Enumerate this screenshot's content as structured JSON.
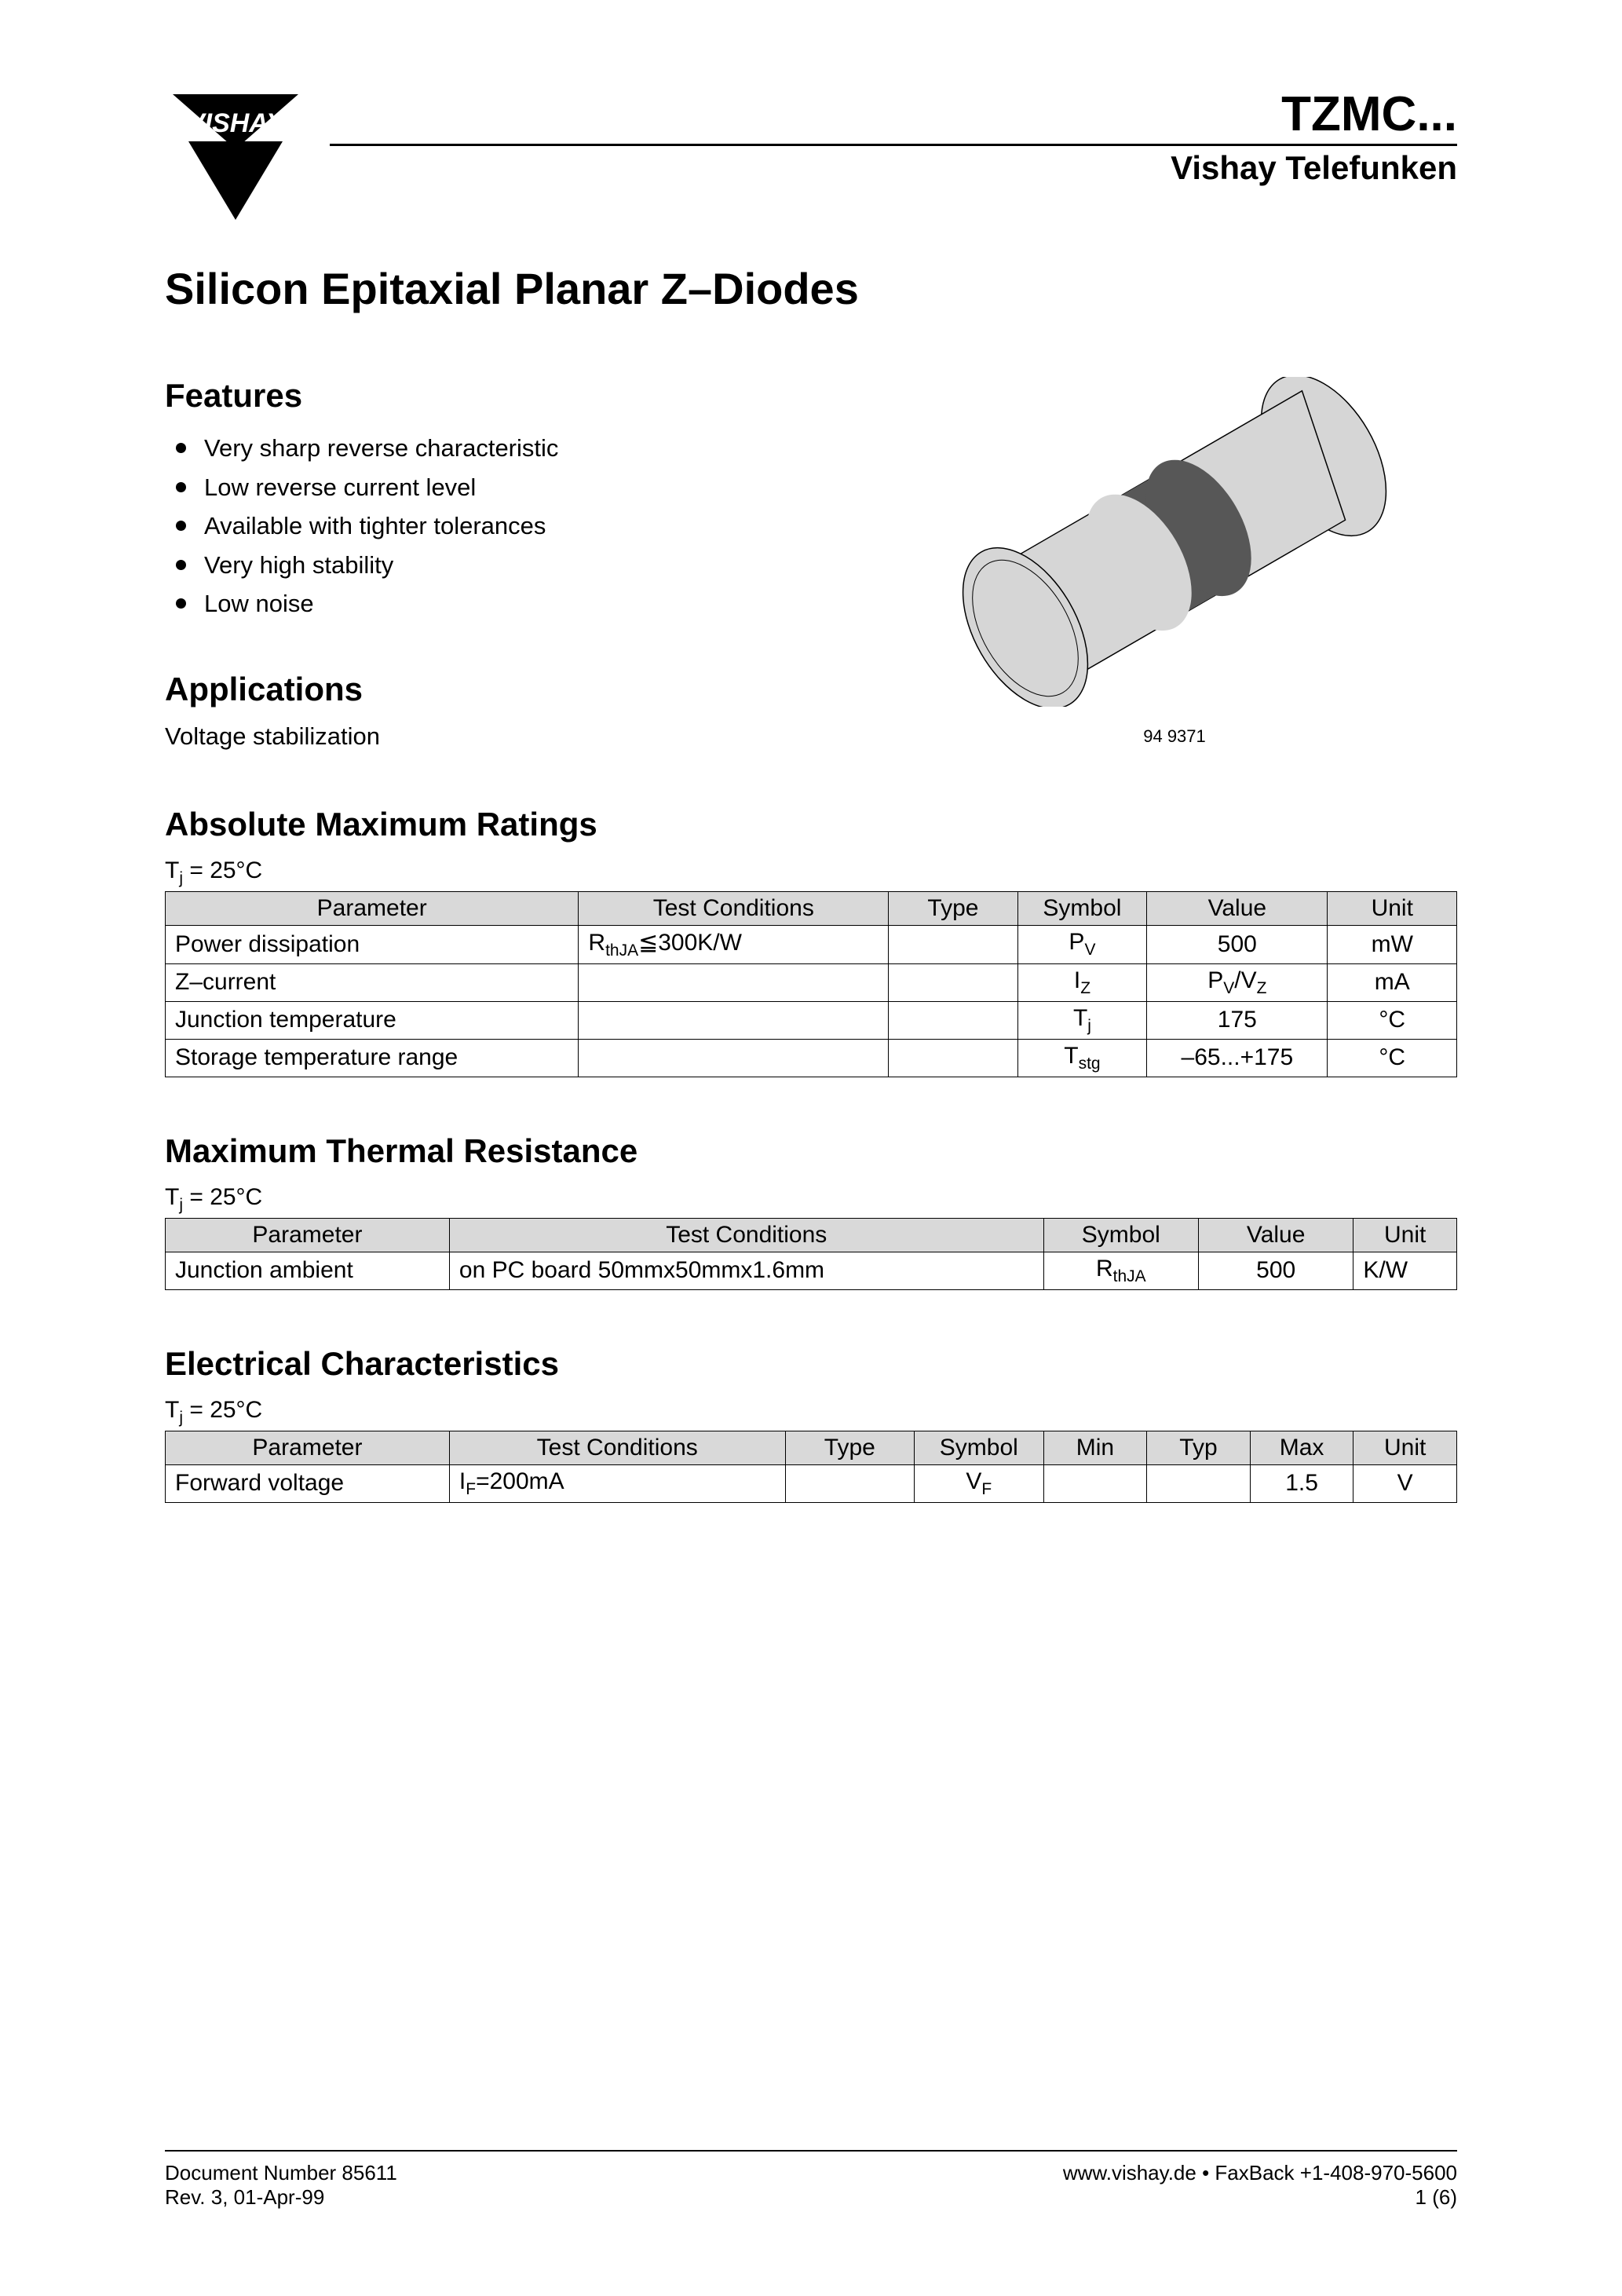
{
  "header": {
    "logo_text": "VISHAY",
    "product_code": "TZMC...",
    "brand_sub": "Vishay Telefunken"
  },
  "page_title": "Silicon Epitaxial Planar Z–Diodes",
  "features": {
    "heading": "Features",
    "items": [
      "Very sharp reverse characteristic",
      "Low reverse current level",
      "Available with tighter tolerances",
      "Very high stability",
      "Low noise"
    ]
  },
  "applications": {
    "heading": "Applications",
    "text": "Voltage stabilization"
  },
  "component_image": {
    "caption": "94 9371",
    "body_fill": "#d6d6d6",
    "band_fill": "#575757",
    "stroke": "#000000"
  },
  "tables": {
    "amr": {
      "heading": "Absolute Maximum Ratings",
      "condition_html": "T<sub>j</sub> = 25°C",
      "columns": [
        "Parameter",
        "Test Conditions",
        "Type",
        "Symbol",
        "Value",
        "Unit"
      ],
      "col_widths": [
        "32%",
        "24%",
        "10%",
        "10%",
        "14%",
        "10%"
      ],
      "col_align": [
        "l",
        "l",
        "c",
        "c",
        "c",
        "c"
      ],
      "rows": [
        [
          "Power dissipation",
          "R<sub>thJA</sub>≦300K/W",
          "",
          "P<sub>V</sub>",
          "500",
          "mW"
        ],
        [
          "Z–current",
          "",
          "",
          "I<sub>Z</sub>",
          "P<sub>V</sub>/V<sub>Z</sub>",
          "mA"
        ],
        [
          "Junction temperature",
          "",
          "",
          "T<sub>j</sub>",
          "175",
          "°C"
        ],
        [
          "Storage temperature range",
          "",
          "",
          "T<sub>stg</sub>",
          "–65...+175",
          "°C"
        ]
      ]
    },
    "mtr": {
      "heading": "Maximum Thermal Resistance",
      "condition_html": "T<sub>j</sub> = 25°C",
      "columns": [
        "Parameter",
        "Test Conditions",
        "Symbol",
        "Value",
        "Unit"
      ],
      "col_widths": [
        "22%",
        "46%",
        "12%",
        "12%",
        "8%"
      ],
      "col_align": [
        "l",
        "l",
        "c",
        "c",
        "l"
      ],
      "rows": [
        [
          "Junction ambient",
          "on PC board 50mmx50mmx1.6mm",
          "R<sub>thJA</sub>",
          "500",
          "K/W"
        ]
      ]
    },
    "ec": {
      "heading": "Electrical Characteristics",
      "condition_html": "T<sub>j</sub> = 25°C",
      "columns": [
        "Parameter",
        "Test Conditions",
        "Type",
        "Symbol",
        "Min",
        "Typ",
        "Max",
        "Unit"
      ],
      "col_widths": [
        "22%",
        "26%",
        "10%",
        "10%",
        "8%",
        "8%",
        "8%",
        "8%"
      ],
      "col_align": [
        "l",
        "l",
        "c",
        "c",
        "c",
        "c",
        "c",
        "c"
      ],
      "rows": [
        [
          "Forward voltage",
          "I<sub>F</sub>=200mA",
          "",
          "V<sub>F</sub>",
          "",
          "",
          "1.5",
          "V"
        ]
      ]
    }
  },
  "footer": {
    "doc_num": "Document Number 85611",
    "rev": "Rev. 3, 01-Apr-99",
    "url": "www.vishay.de • FaxBack +1-408-970-5600",
    "page": "1 (6)"
  }
}
